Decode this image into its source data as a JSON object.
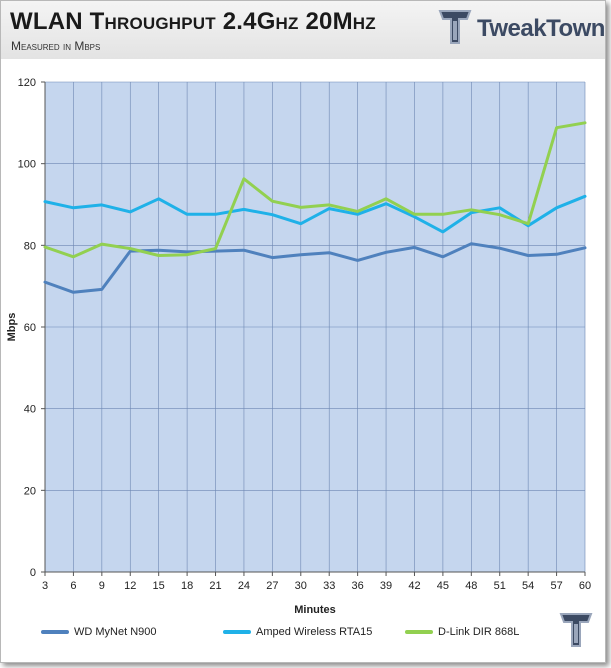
{
  "header": {
    "title": "WLAN Throughput  2.4Ghz 20Mhz",
    "subtitle": "Measured in Mbps",
    "logo_text": "TweakTown"
  },
  "colors": {
    "plot_bg": "#c5d6ee",
    "grid": "#6d87b3",
    "series": [
      "#4f81bd",
      "#1fb1e8",
      "#92d050"
    ]
  },
  "chart_data": {
    "type": "line",
    "title": "WLAN Throughput  2.4Ghz 20Mhz",
    "subtitle": "Measured in Mbps",
    "xlabel": "Minutes",
    "ylabel": "Mbps",
    "ylim": [
      0,
      120
    ],
    "yticks": [
      0,
      20,
      40,
      60,
      80,
      100,
      120
    ],
    "x": [
      3,
      6,
      9,
      12,
      15,
      18,
      21,
      24,
      27,
      30,
      33,
      36,
      39,
      42,
      45,
      48,
      51,
      54,
      57,
      60
    ],
    "grid": true,
    "legend_position": "bottom",
    "series": [
      {
        "name": "WD MyNet N900",
        "values": [
          71.0,
          68.5,
          69.2,
          78.6,
          78.8,
          78.4,
          78.6,
          78.8,
          77.0,
          77.7,
          78.2,
          76.3,
          78.3,
          79.5,
          77.2,
          80.4,
          79.3,
          77.5,
          77.8,
          79.4
        ]
      },
      {
        "name": "Amped Wireless RTA15",
        "values": [
          90.7,
          89.2,
          89.9,
          88.2,
          91.4,
          87.6,
          87.6,
          88.8,
          87.5,
          85.3,
          89.0,
          87.6,
          90.2,
          87.0,
          83.3,
          88.0,
          89.2,
          84.8,
          89.2,
          92.0
        ]
      },
      {
        "name": "D-Link DIR 868L",
        "values": [
          79.6,
          77.2,
          80.3,
          79.2,
          77.5,
          77.7,
          79.2,
          96.3,
          90.8,
          89.3,
          89.9,
          88.3,
          91.4,
          87.6,
          87.6,
          88.7,
          87.5,
          85.3,
          108.8,
          110.0
        ]
      }
    ]
  }
}
